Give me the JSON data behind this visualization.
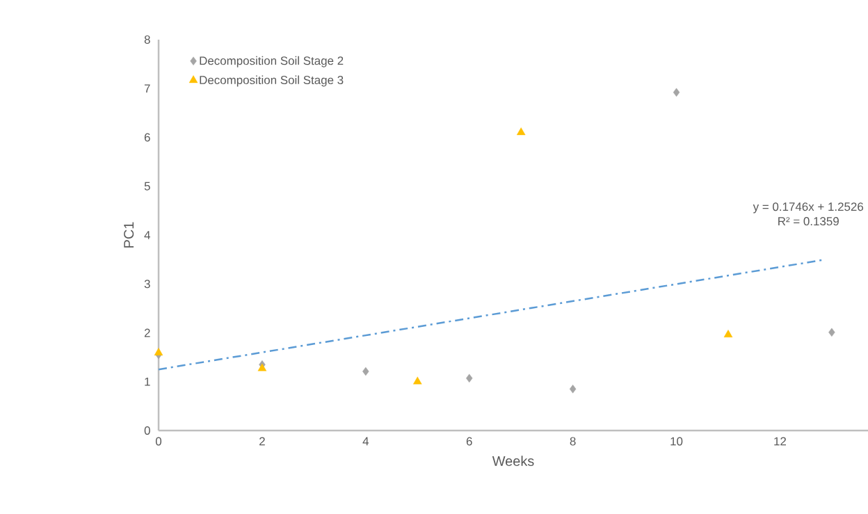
{
  "chart_data": {
    "type": "scatter",
    "xlabel": "Weeks",
    "ylabel": "PC1",
    "xlim": [
      0,
      13.7
    ],
    "ylim": [
      0,
      8
    ],
    "xticks": [
      0,
      2,
      4,
      6,
      8,
      10,
      12
    ],
    "yticks": [
      0,
      1,
      2,
      3,
      4,
      5,
      6,
      7,
      8
    ],
    "grid": false,
    "legend": "top left",
    "series": [
      {
        "name": "Decomposition Soil Stage 2",
        "color": "#a5a5a5",
        "marker": "diamond",
        "x": [
          0,
          2,
          4,
          6,
          8,
          10,
          13
        ],
        "values": [
          1.55,
          1.35,
          1.21,
          1.07,
          0.85,
          6.92,
          2.01
        ]
      },
      {
        "name": "Decomposition Soil Stage 3",
        "color": "#ffc000",
        "marker": "triangle",
        "x": [
          0,
          2,
          5,
          7,
          11
        ],
        "values": [
          1.59,
          1.27,
          1.0,
          6.1,
          1.96
        ]
      },
      {
        "type": "line",
        "color": "#5b9bd5",
        "line_style": "dashdot",
        "x": [
          0,
          12.82
        ],
        "values": [
          1.25,
          3.49
        ]
      }
    ],
    "annotations": [
      "y = 0.1746x + 1.2526",
      "R² = 0.1359"
    ]
  }
}
